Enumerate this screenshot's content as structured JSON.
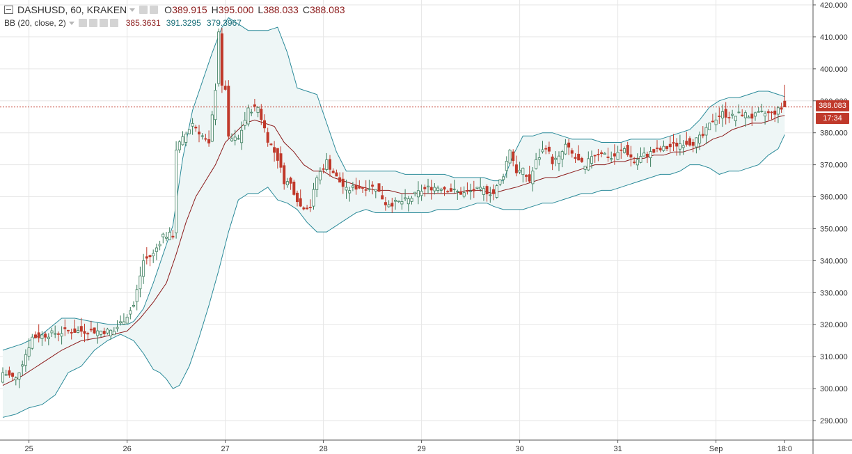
{
  "header": {
    "symbol": "DASHUSD, 60, KRAKEN",
    "o_label": "O",
    "o_value": "389.915",
    "h_label": "H",
    "h_value": "395.000",
    "l_label": "L",
    "l_value": "388.033",
    "c_label": "C",
    "c_value": "388.083"
  },
  "indicator": {
    "name": "BB (20, close, 2)",
    "basis": "385.3631",
    "upper": "391.3295",
    "lower": "379.3967"
  },
  "price_label": {
    "last": "388.083",
    "countdown": "17:34"
  },
  "colors": {
    "up": "#3b7d5d",
    "down": "#c0392b",
    "band_line": "#2a8a99",
    "band_fill": "#eef6f6",
    "basis": "#8b1a1a",
    "grid": "#e6e6e6",
    "axis": "#555555",
    "last_line": "#c0392b",
    "badge": "#c0392b"
  },
  "chart_data": {
    "type": "candlestick",
    "title": "DASHUSD, 60, KRAKEN",
    "ylim": [
      284,
      422
    ],
    "y_ticks": [
      290,
      300,
      310,
      320,
      330,
      340,
      350,
      360,
      370,
      380,
      390,
      400,
      410,
      420
    ],
    "y_tick_labels": [
      "290.000",
      "300.000",
      "310.000",
      "320.000",
      "330.000",
      "340.000",
      "350.000",
      "360.000",
      "370.000",
      "380.000",
      "390.000",
      "400.000",
      "410.000",
      "420.000"
    ],
    "x_ticks": [
      {
        "label": "25",
        "bar": 8
      },
      {
        "label": "26",
        "bar": 38
      },
      {
        "label": "27",
        "bar": 68
      },
      {
        "label": "28",
        "bar": 98
      },
      {
        "label": "29",
        "bar": 128
      },
      {
        "label": "30",
        "bar": 158
      },
      {
        "label": "31",
        "bar": 188
      },
      {
        "label": "Sep",
        "bar": 218
      },
      {
        "label": "18:0",
        "bar": 239
      }
    ],
    "bar_count": 240,
    "anchors": {
      "close": [
        [
          0,
          305
        ],
        [
          4,
          303
        ],
        [
          9,
          316
        ],
        [
          14,
          317
        ],
        [
          20,
          318
        ],
        [
          24,
          318
        ],
        [
          30,
          318
        ],
        [
          34,
          318
        ],
        [
          38,
          323
        ],
        [
          40,
          326
        ],
        [
          43,
          340
        ],
        [
          46,
          342
        ],
        [
          49,
          348
        ],
        [
          52,
          348
        ],
        [
          53,
          375
        ],
        [
          55,
          378
        ],
        [
          58,
          383
        ],
        [
          61,
          379
        ],
        [
          63,
          376
        ],
        [
          65,
          394
        ],
        [
          66,
          412
        ],
        [
          67,
          394
        ],
        [
          68,
          394
        ],
        [
          69,
          378
        ],
        [
          72,
          378
        ],
        [
          75,
          387
        ],
        [
          78,
          388
        ],
        [
          81,
          378
        ],
        [
          84,
          372
        ],
        [
          86,
          365
        ],
        [
          88,
          364
        ],
        [
          91,
          357
        ],
        [
          94,
          357
        ],
        [
          96,
          366
        ],
        [
          99,
          371
        ],
        [
          102,
          366
        ],
        [
          105,
          362
        ],
        [
          108,
          363
        ],
        [
          111,
          363
        ],
        [
          114,
          363
        ],
        [
          117,
          358
        ],
        [
          120,
          358
        ],
        [
          124,
          359
        ],
        [
          128,
          362
        ],
        [
          131,
          363
        ],
        [
          134,
          363
        ],
        [
          137,
          362
        ],
        [
          141,
          361
        ],
        [
          144,
          362
        ],
        [
          147,
          362
        ],
        [
          150,
          361
        ],
        [
          153,
          367
        ],
        [
          155,
          375
        ],
        [
          157,
          368
        ],
        [
          159,
          368
        ],
        [
          161,
          365
        ],
        [
          163,
          371
        ],
        [
          166,
          376
        ],
        [
          168,
          371
        ],
        [
          170,
          372
        ],
        [
          172,
          376
        ],
        [
          175,
          372
        ],
        [
          178,
          369
        ],
        [
          180,
          373
        ],
        [
          183,
          374
        ],
        [
          186,
          372
        ],
        [
          190,
          375
        ],
        [
          193,
          371
        ],
        [
          196,
          373
        ],
        [
          199,
          374
        ],
        [
          202,
          375
        ],
        [
          205,
          376
        ],
        [
          208,
          377
        ],
        [
          211,
          377
        ],
        [
          214,
          379
        ],
        [
          217,
          384
        ],
        [
          220,
          386
        ],
        [
          223,
          385
        ],
        [
          226,
          386
        ],
        [
          229,
          385
        ],
        [
          232,
          386
        ],
        [
          235,
          386
        ],
        [
          237,
          387
        ],
        [
          239,
          388.1
        ]
      ],
      "upper": [
        [
          0,
          312
        ],
        [
          6,
          314
        ],
        [
          12,
          317
        ],
        [
          18,
          322
        ],
        [
          22,
          322
        ],
        [
          27,
          321
        ],
        [
          33,
          320
        ],
        [
          38,
          320
        ],
        [
          40,
          321
        ],
        [
          43,
          325
        ],
        [
          46,
          333
        ],
        [
          49,
          342
        ],
        [
          52,
          351
        ],
        [
          55,
          372
        ],
        [
          58,
          387
        ],
        [
          61,
          396
        ],
        [
          64,
          405
        ],
        [
          67,
          413
        ],
        [
          69,
          416
        ],
        [
          72,
          414
        ],
        [
          75,
          412
        ],
        [
          78,
          412
        ],
        [
          81,
          412
        ],
        [
          84,
          413
        ],
        [
          87,
          405
        ],
        [
          90,
          394
        ],
        [
          93,
          393
        ],
        [
          96,
          392
        ],
        [
          99,
          383
        ],
        [
          102,
          374
        ],
        [
          105,
          368
        ],
        [
          108,
          368
        ],
        [
          111,
          368
        ],
        [
          114,
          368
        ],
        [
          117,
          368
        ],
        [
          120,
          368
        ],
        [
          123,
          367
        ],
        [
          126,
          367
        ],
        [
          129,
          367
        ],
        [
          132,
          367
        ],
        [
          135,
          367
        ],
        [
          138,
          366
        ],
        [
          141,
          366
        ],
        [
          144,
          366
        ],
        [
          147,
          366
        ],
        [
          150,
          365
        ],
        [
          153,
          365
        ],
        [
          156,
          373
        ],
        [
          159,
          379
        ],
        [
          162,
          379
        ],
        [
          165,
          380
        ],
        [
          168,
          380
        ],
        [
          171,
          379
        ],
        [
          174,
          378
        ],
        [
          177,
          378
        ],
        [
          180,
          378
        ],
        [
          183,
          377
        ],
        [
          186,
          377
        ],
        [
          189,
          377
        ],
        [
          192,
          378
        ],
        [
          195,
          378
        ],
        [
          198,
          378
        ],
        [
          201,
          378
        ],
        [
          204,
          379
        ],
        [
          207,
          380
        ],
        [
          210,
          381
        ],
        [
          213,
          384
        ],
        [
          216,
          388
        ],
        [
          219,
          390
        ],
        [
          222,
          391
        ],
        [
          225,
          391
        ],
        [
          228,
          392
        ],
        [
          231,
          393
        ],
        [
          234,
          393
        ],
        [
          237,
          392
        ],
        [
          239,
          391.3
        ]
      ],
      "basis": [
        [
          0,
          301
        ],
        [
          6,
          304
        ],
        [
          12,
          308
        ],
        [
          18,
          312
        ],
        [
          24,
          315
        ],
        [
          30,
          316
        ],
        [
          34,
          317
        ],
        [
          38,
          318
        ],
        [
          42,
          322
        ],
        [
          46,
          327
        ],
        [
          50,
          333
        ],
        [
          53,
          342
        ],
        [
          56,
          352
        ],
        [
          59,
          360
        ],
        [
          62,
          365
        ],
        [
          65,
          370
        ],
        [
          68,
          377
        ],
        [
          71,
          380
        ],
        [
          74,
          383
        ],
        [
          77,
          384
        ],
        [
          80,
          383
        ],
        [
          83,
          382
        ],
        [
          86,
          377
        ],
        [
          89,
          374
        ],
        [
          92,
          370
        ],
        [
          95,
          368
        ],
        [
          98,
          368
        ],
        [
          101,
          366
        ],
        [
          104,
          365
        ],
        [
          107,
          364
        ],
        [
          110,
          363
        ],
        [
          114,
          362
        ],
        [
          118,
          362
        ],
        [
          122,
          361
        ],
        [
          126,
          361
        ],
        [
          130,
          361
        ],
        [
          134,
          361
        ],
        [
          138,
          361
        ],
        [
          142,
          362
        ],
        [
          146,
          362
        ],
        [
          150,
          361
        ],
        [
          153,
          362
        ],
        [
          157,
          363
        ],
        [
          160,
          364
        ],
        [
          163,
          365
        ],
        [
          166,
          366
        ],
        [
          169,
          366
        ],
        [
          172,
          367
        ],
        [
          175,
          368
        ],
        [
          178,
          369
        ],
        [
          181,
          370
        ],
        [
          184,
          370
        ],
        [
          187,
          371
        ],
        [
          190,
          371
        ],
        [
          193,
          372
        ],
        [
          196,
          372
        ],
        [
          199,
          373
        ],
        [
          202,
          373
        ],
        [
          205,
          374
        ],
        [
          208,
          374
        ],
        [
          211,
          375
        ],
        [
          214,
          376
        ],
        [
          217,
          378
        ],
        [
          220,
          379
        ],
        [
          223,
          381
        ],
        [
          226,
          382
        ],
        [
          229,
          383
        ],
        [
          232,
          383
        ],
        [
          235,
          384
        ],
        [
          237,
          385
        ],
        [
          239,
          385.4
        ]
      ],
      "lower": [
        [
          0,
          291
        ],
        [
          4,
          292
        ],
        [
          8,
          294
        ],
        [
          12,
          295
        ],
        [
          16,
          298
        ],
        [
          20,
          305
        ],
        [
          24,
          307
        ],
        [
          28,
          312
        ],
        [
          32,
          315
        ],
        [
          36,
          317
        ],
        [
          38,
          316
        ],
        [
          40,
          315
        ],
        [
          43,
          311
        ],
        [
          46,
          306
        ],
        [
          48,
          305
        ],
        [
          50,
          303
        ],
        [
          52,
          300
        ],
        [
          54,
          301
        ],
        [
          57,
          307
        ],
        [
          60,
          316
        ],
        [
          63,
          326
        ],
        [
          66,
          337
        ],
        [
          69,
          349
        ],
        [
          72,
          359
        ],
        [
          75,
          361
        ],
        [
          78,
          361
        ],
        [
          81,
          363
        ],
        [
          84,
          359
        ],
        [
          87,
          358
        ],
        [
          90,
          356
        ],
        [
          93,
          352
        ],
        [
          96,
          349
        ],
        [
          99,
          349
        ],
        [
          102,
          351
        ],
        [
          105,
          353
        ],
        [
          108,
          355
        ],
        [
          111,
          356
        ],
        [
          114,
          355
        ],
        [
          117,
          355
        ],
        [
          120,
          355
        ],
        [
          123,
          355
        ],
        [
          127,
          355
        ],
        [
          130,
          355
        ],
        [
          133,
          356
        ],
        [
          136,
          356
        ],
        [
          139,
          356
        ],
        [
          142,
          357
        ],
        [
          145,
          358
        ],
        [
          148,
          358
        ],
        [
          150,
          357
        ],
        [
          153,
          356
        ],
        [
          156,
          356
        ],
        [
          159,
          356
        ],
        [
          162,
          357
        ],
        [
          165,
          358
        ],
        [
          168,
          358
        ],
        [
          171,
          359
        ],
        [
          174,
          360
        ],
        [
          177,
          361
        ],
        [
          180,
          361
        ],
        [
          183,
          362
        ],
        [
          186,
          362
        ],
        [
          189,
          363
        ],
        [
          192,
          364
        ],
        [
          195,
          365
        ],
        [
          198,
          366
        ],
        [
          201,
          367
        ],
        [
          204,
          367
        ],
        [
          207,
          368
        ],
        [
          210,
          370
        ],
        [
          213,
          370
        ],
        [
          216,
          369
        ],
        [
          219,
          367
        ],
        [
          222,
          368
        ],
        [
          225,
          368
        ],
        [
          228,
          369
        ],
        [
          231,
          370
        ],
        [
          234,
          373
        ],
        [
          237,
          375
        ],
        [
          239,
          379.4
        ]
      ]
    },
    "last_price": 388.083,
    "last_candle": {
      "open": 389.915,
      "high": 395.0,
      "low": 388.033,
      "close": 388.083
    }
  }
}
